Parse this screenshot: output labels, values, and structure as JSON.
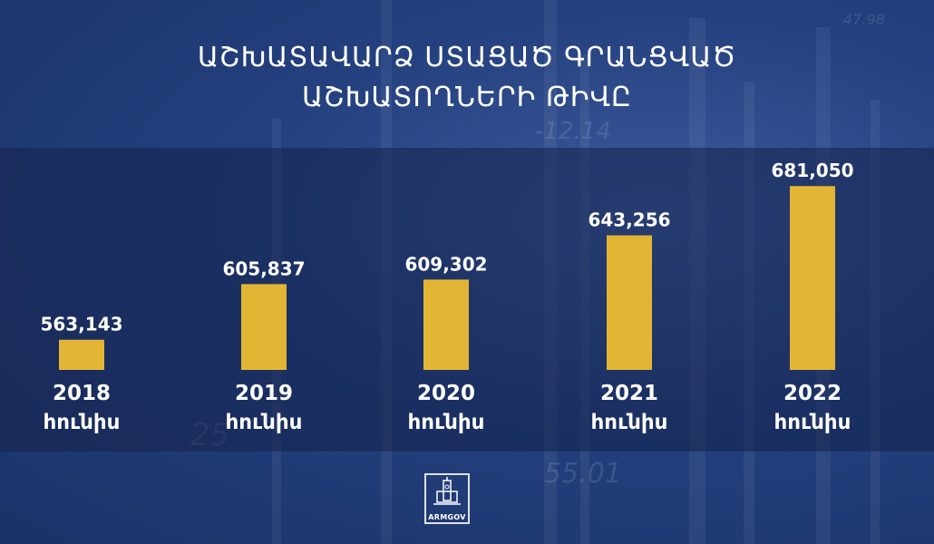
{
  "title_line1": "ԱՇԽԱՏԱՎԱՐՁ ՍՏԱՑԱԾ ԳՐԱՆՑՎԱԾ",
  "title_line2": "ԱՇԽԱՏՈՂՆԵՐԻ ԹԻՎԸ",
  "logo_text": "ARMGOV",
  "colors": {
    "bar": "#e2b534",
    "text": "#ffffff"
  },
  "chart_data": {
    "type": "bar",
    "categories": [
      {
        "year": "2018",
        "month": "հունիս"
      },
      {
        "year": "2019",
        "month": "հունիս"
      },
      {
        "year": "2020",
        "month": "հունիս"
      },
      {
        "year": "2021",
        "month": "հունիս"
      },
      {
        "year": "2022",
        "month": "հունիս"
      }
    ],
    "values": [
      563143,
      605837,
      609302,
      643256,
      681050
    ],
    "value_labels": [
      "563,143",
      "605,837",
      "609,302",
      "643,256",
      "681,050"
    ],
    "ylim": [
      540000,
      700000
    ],
    "grid": false,
    "legend": "none"
  }
}
